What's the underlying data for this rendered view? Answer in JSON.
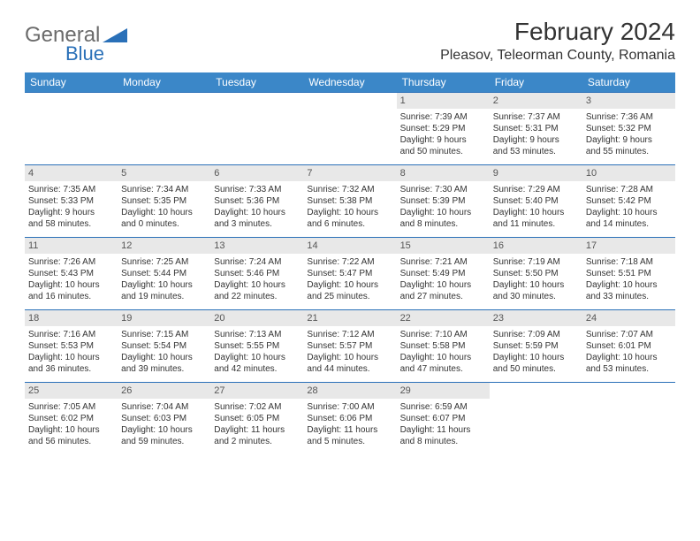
{
  "logo": {
    "general": "General",
    "blue": "Blue"
  },
  "title": "February 2024",
  "location": "Pleasov, Teleorman County, Romania",
  "colors": {
    "header_bg": "#3b87c8",
    "header_text": "#ffffff",
    "row_border": "#2a70b8",
    "daynum_bg": "#e8e8e8",
    "logo_gray": "#6b6b6b",
    "logo_blue": "#2a70b8"
  },
  "day_headers": [
    "Sunday",
    "Monday",
    "Tuesday",
    "Wednesday",
    "Thursday",
    "Friday",
    "Saturday"
  ],
  "weeks": [
    [
      null,
      null,
      null,
      null,
      {
        "n": "1",
        "sr": "Sunrise: 7:39 AM",
        "ss": "Sunset: 5:29 PM",
        "d1": "Daylight: 9 hours",
        "d2": "and 50 minutes."
      },
      {
        "n": "2",
        "sr": "Sunrise: 7:37 AM",
        "ss": "Sunset: 5:31 PM",
        "d1": "Daylight: 9 hours",
        "d2": "and 53 minutes."
      },
      {
        "n": "3",
        "sr": "Sunrise: 7:36 AM",
        "ss": "Sunset: 5:32 PM",
        "d1": "Daylight: 9 hours",
        "d2": "and 55 minutes."
      }
    ],
    [
      {
        "n": "4",
        "sr": "Sunrise: 7:35 AM",
        "ss": "Sunset: 5:33 PM",
        "d1": "Daylight: 9 hours",
        "d2": "and 58 minutes."
      },
      {
        "n": "5",
        "sr": "Sunrise: 7:34 AM",
        "ss": "Sunset: 5:35 PM",
        "d1": "Daylight: 10 hours",
        "d2": "and 0 minutes."
      },
      {
        "n": "6",
        "sr": "Sunrise: 7:33 AM",
        "ss": "Sunset: 5:36 PM",
        "d1": "Daylight: 10 hours",
        "d2": "and 3 minutes."
      },
      {
        "n": "7",
        "sr": "Sunrise: 7:32 AM",
        "ss": "Sunset: 5:38 PM",
        "d1": "Daylight: 10 hours",
        "d2": "and 6 minutes."
      },
      {
        "n": "8",
        "sr": "Sunrise: 7:30 AM",
        "ss": "Sunset: 5:39 PM",
        "d1": "Daylight: 10 hours",
        "d2": "and 8 minutes."
      },
      {
        "n": "9",
        "sr": "Sunrise: 7:29 AM",
        "ss": "Sunset: 5:40 PM",
        "d1": "Daylight: 10 hours",
        "d2": "and 11 minutes."
      },
      {
        "n": "10",
        "sr": "Sunrise: 7:28 AM",
        "ss": "Sunset: 5:42 PM",
        "d1": "Daylight: 10 hours",
        "d2": "and 14 minutes."
      }
    ],
    [
      {
        "n": "11",
        "sr": "Sunrise: 7:26 AM",
        "ss": "Sunset: 5:43 PM",
        "d1": "Daylight: 10 hours",
        "d2": "and 16 minutes."
      },
      {
        "n": "12",
        "sr": "Sunrise: 7:25 AM",
        "ss": "Sunset: 5:44 PM",
        "d1": "Daylight: 10 hours",
        "d2": "and 19 minutes."
      },
      {
        "n": "13",
        "sr": "Sunrise: 7:24 AM",
        "ss": "Sunset: 5:46 PM",
        "d1": "Daylight: 10 hours",
        "d2": "and 22 minutes."
      },
      {
        "n": "14",
        "sr": "Sunrise: 7:22 AM",
        "ss": "Sunset: 5:47 PM",
        "d1": "Daylight: 10 hours",
        "d2": "and 25 minutes."
      },
      {
        "n": "15",
        "sr": "Sunrise: 7:21 AM",
        "ss": "Sunset: 5:49 PM",
        "d1": "Daylight: 10 hours",
        "d2": "and 27 minutes."
      },
      {
        "n": "16",
        "sr": "Sunrise: 7:19 AM",
        "ss": "Sunset: 5:50 PM",
        "d1": "Daylight: 10 hours",
        "d2": "and 30 minutes."
      },
      {
        "n": "17",
        "sr": "Sunrise: 7:18 AM",
        "ss": "Sunset: 5:51 PM",
        "d1": "Daylight: 10 hours",
        "d2": "and 33 minutes."
      }
    ],
    [
      {
        "n": "18",
        "sr": "Sunrise: 7:16 AM",
        "ss": "Sunset: 5:53 PM",
        "d1": "Daylight: 10 hours",
        "d2": "and 36 minutes."
      },
      {
        "n": "19",
        "sr": "Sunrise: 7:15 AM",
        "ss": "Sunset: 5:54 PM",
        "d1": "Daylight: 10 hours",
        "d2": "and 39 minutes."
      },
      {
        "n": "20",
        "sr": "Sunrise: 7:13 AM",
        "ss": "Sunset: 5:55 PM",
        "d1": "Daylight: 10 hours",
        "d2": "and 42 minutes."
      },
      {
        "n": "21",
        "sr": "Sunrise: 7:12 AM",
        "ss": "Sunset: 5:57 PM",
        "d1": "Daylight: 10 hours",
        "d2": "and 44 minutes."
      },
      {
        "n": "22",
        "sr": "Sunrise: 7:10 AM",
        "ss": "Sunset: 5:58 PM",
        "d1": "Daylight: 10 hours",
        "d2": "and 47 minutes."
      },
      {
        "n": "23",
        "sr": "Sunrise: 7:09 AM",
        "ss": "Sunset: 5:59 PM",
        "d1": "Daylight: 10 hours",
        "d2": "and 50 minutes."
      },
      {
        "n": "24",
        "sr": "Sunrise: 7:07 AM",
        "ss": "Sunset: 6:01 PM",
        "d1": "Daylight: 10 hours",
        "d2": "and 53 minutes."
      }
    ],
    [
      {
        "n": "25",
        "sr": "Sunrise: 7:05 AM",
        "ss": "Sunset: 6:02 PM",
        "d1": "Daylight: 10 hours",
        "d2": "and 56 minutes."
      },
      {
        "n": "26",
        "sr": "Sunrise: 7:04 AM",
        "ss": "Sunset: 6:03 PM",
        "d1": "Daylight: 10 hours",
        "d2": "and 59 minutes."
      },
      {
        "n": "27",
        "sr": "Sunrise: 7:02 AM",
        "ss": "Sunset: 6:05 PM",
        "d1": "Daylight: 11 hours",
        "d2": "and 2 minutes."
      },
      {
        "n": "28",
        "sr": "Sunrise: 7:00 AM",
        "ss": "Sunset: 6:06 PM",
        "d1": "Daylight: 11 hours",
        "d2": "and 5 minutes."
      },
      {
        "n": "29",
        "sr": "Sunrise: 6:59 AM",
        "ss": "Sunset: 6:07 PM",
        "d1": "Daylight: 11 hours",
        "d2": "and 8 minutes."
      },
      null,
      null
    ]
  ]
}
